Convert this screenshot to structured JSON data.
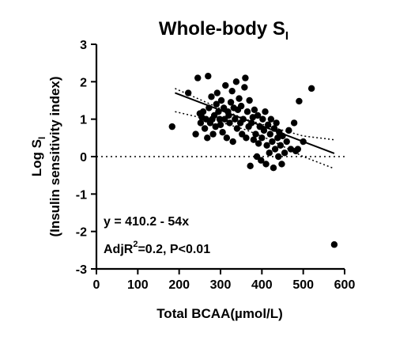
{
  "chart_data": {
    "type": "scatter",
    "title": "Whole-body S",
    "title_subscript": "I",
    "xlabel": "Total BCAA(µmol/L)",
    "ylabel_line1_main": "Log S",
    "ylabel_line1_sub": "I",
    "ylabel_line2": "(Insulin sensitivity index)",
    "xlim": [
      0,
      600
    ],
    "ylim": [
      -3,
      3
    ],
    "x_ticks": [
      0,
      100,
      200,
      300,
      400,
      500,
      600
    ],
    "y_ticks": [
      -3,
      -2,
      -1,
      0,
      1,
      2,
      3
    ],
    "grid": false,
    "zero_reference_line": {
      "y": 0,
      "style": "dotted"
    },
    "regression": {
      "x_range": [
        190,
        575
      ],
      "intercept_at_x0": 2.5,
      "slope_per_unit": -0.0042,
      "ci_band": {
        "upper": [
          [
            190,
            1.82
          ],
          [
            300,
            1.28
          ],
          [
            360,
            1.0
          ],
          [
            420,
            0.8
          ],
          [
            500,
            0.55
          ],
          [
            575,
            0.45
          ]
        ],
        "lower": [
          [
            190,
            1.2
          ],
          [
            300,
            0.92
          ],
          [
            360,
            0.72
          ],
          [
            420,
            0.45
          ],
          [
            500,
            0.0
          ],
          [
            575,
            -0.32
          ]
        ]
      }
    },
    "points": [
      [
        183,
        0.8
      ],
      [
        222,
        1.7
      ],
      [
        240,
        0.6
      ],
      [
        245,
        2.1
      ],
      [
        250,
        1.15
      ],
      [
        252,
        0.9
      ],
      [
        255,
        1.05
      ],
      [
        258,
        1.2
      ],
      [
        262,
        0.75
      ],
      [
        265,
        1.0
      ],
      [
        268,
        0.5
      ],
      [
        270,
        2.15
      ],
      [
        272,
        1.3
      ],
      [
        275,
        0.9
      ],
      [
        278,
        1.6
      ],
      [
        280,
        1.0
      ],
      [
        282,
        0.6
      ],
      [
        285,
        1.1
      ],
      [
        288,
        0.8
      ],
      [
        290,
        1.4
      ],
      [
        292,
        1.7
      ],
      [
        295,
        1.2
      ],
      [
        298,
        1.0
      ],
      [
        300,
        0.85
      ],
      [
        302,
        1.5
      ],
      [
        305,
        0.65
      ],
      [
        308,
        1.3
      ],
      [
        310,
        1.0
      ],
      [
        312,
        1.9
      ],
      [
        315,
        0.5
      ],
      [
        318,
        1.2
      ],
      [
        320,
        1.1
      ],
      [
        322,
        0.9
      ],
      [
        325,
        1.45
      ],
      [
        328,
        1.75
      ],
      [
        330,
        0.4
      ],
      [
        332,
        1.3
      ],
      [
        335,
        1.0
      ],
      [
        338,
        2.0
      ],
      [
        340,
        0.75
      ],
      [
        342,
        1.25
      ],
      [
        345,
        1.55
      ],
      [
        348,
        0.9
      ],
      [
        350,
        1.35
      ],
      [
        352,
        0.6
      ],
      [
        355,
        1.0
      ],
      [
        358,
        1.85
      ],
      [
        360,
        2.1
      ],
      [
        362,
        0.5
      ],
      [
        365,
        1.2
      ],
      [
        368,
        0.8
      ],
      [
        370,
        1.5
      ],
      [
        372,
        -0.25
      ],
      [
        375,
        0.9
      ],
      [
        378,
        1.05
      ],
      [
        380,
        0.45
      ],
      [
        382,
        1.25
      ],
      [
        385,
        0.6
      ],
      [
        388,
        0.0
      ],
      [
        390,
        1.1
      ],
      [
        392,
        0.35
      ],
      [
        395,
        0.8
      ],
      [
        398,
        -0.1
      ],
      [
        400,
        0.5
      ],
      [
        402,
        1.0
      ],
      [
        405,
        0.7
      ],
      [
        408,
        1.2
      ],
      [
        410,
        -0.2
      ],
      [
        412,
        0.3
      ],
      [
        415,
        0.85
      ],
      [
        418,
        0.1
      ],
      [
        420,
        0.6
      ],
      [
        422,
        1.0
      ],
      [
        425,
        0.4
      ],
      [
        428,
        -0.3
      ],
      [
        430,
        0.75
      ],
      [
        432,
        0.2
      ],
      [
        435,
        0.9
      ],
      [
        438,
        0.5
      ],
      [
        440,
        0.0
      ],
      [
        442,
        0.65
      ],
      [
        445,
        0.3
      ],
      [
        448,
        -0.2
      ],
      [
        450,
        0.55
      ],
      [
        455,
        0.1
      ],
      [
        460,
        0.4
      ],
      [
        465,
        0.7
      ],
      [
        470,
        0.2
      ],
      [
        478,
        0.9
      ],
      [
        482,
        0.15
      ],
      [
        487,
        0.2
      ],
      [
        490,
        1.48
      ],
      [
        500,
        0.4
      ],
      [
        520,
        1.82
      ],
      [
        575,
        -2.35
      ]
    ],
    "annotations": {
      "equation": "y = 410.2 - 54x",
      "stat_prefix": "AdjR",
      "stat_sup": "2",
      "stat_rest": "=0.2, P<0.01"
    }
  }
}
